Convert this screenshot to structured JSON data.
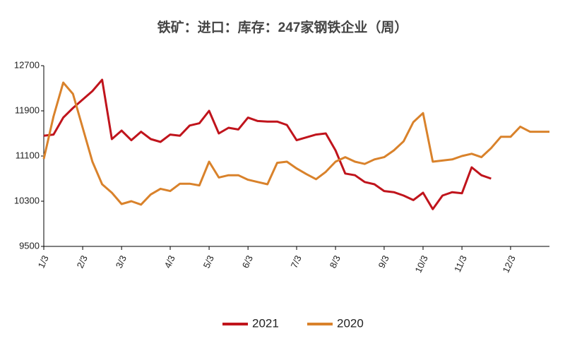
{
  "chart_data": {
    "type": "line",
    "title": "铁矿：进口：库存：247家钢铁企业（周）",
    "categories": [
      "1/3",
      null,
      null,
      null,
      "2/3",
      null,
      null,
      null,
      "3/3",
      null,
      null,
      null,
      null,
      "4/3",
      null,
      null,
      null,
      "5/3",
      null,
      null,
      null,
      "6/3",
      null,
      null,
      null,
      null,
      "7/3",
      null,
      null,
      null,
      "8/3",
      null,
      null,
      null,
      null,
      "9/3",
      null,
      null,
      null,
      "10/3",
      null,
      null,
      null,
      "11/3",
      null,
      null,
      null,
      null,
      "12/3",
      null,
      null,
      null,
      null
    ],
    "series": [
      {
        "name": "2021",
        "color": "#c0141c",
        "values": [
          11460,
          11480,
          11780,
          11950,
          12100,
          12250,
          12450,
          11400,
          11550,
          11380,
          11530,
          11400,
          11350,
          11480,
          11460,
          11640,
          11680,
          11900,
          11500,
          11600,
          11570,
          11780,
          11720,
          11710,
          11710,
          11650,
          11380,
          11430,
          11480,
          11500,
          11200,
          10790,
          10760,
          10640,
          10600,
          10480,
          10460,
          10400,
          10320,
          10450,
          10160,
          10400,
          10460,
          10440,
          10900,
          10760,
          10700,
          null,
          null,
          null,
          null,
          null,
          null
        ]
      },
      {
        "name": "2020",
        "color": "#d9822b",
        "values": [
          11050,
          11800,
          12400,
          12200,
          11600,
          11000,
          10600,
          10450,
          10250,
          10300,
          10240,
          10420,
          10520,
          10480,
          10610,
          10610,
          10580,
          11000,
          10720,
          10760,
          10760,
          10680,
          10640,
          10600,
          10980,
          11000,
          10880,
          10780,
          10690,
          10820,
          11000,
          11080,
          11000,
          10960,
          11040,
          11080,
          11200,
          11360,
          11700,
          11860,
          11000,
          11020,
          11040,
          11100,
          11140,
          11080,
          11240,
          11440,
          11440,
          11620,
          11530,
          11530,
          11530
        ]
      }
    ],
    "ylim": [
      9500,
      12700
    ],
    "yticks": [
      9500,
      10300,
      11100,
      11900,
      12700
    ]
  }
}
